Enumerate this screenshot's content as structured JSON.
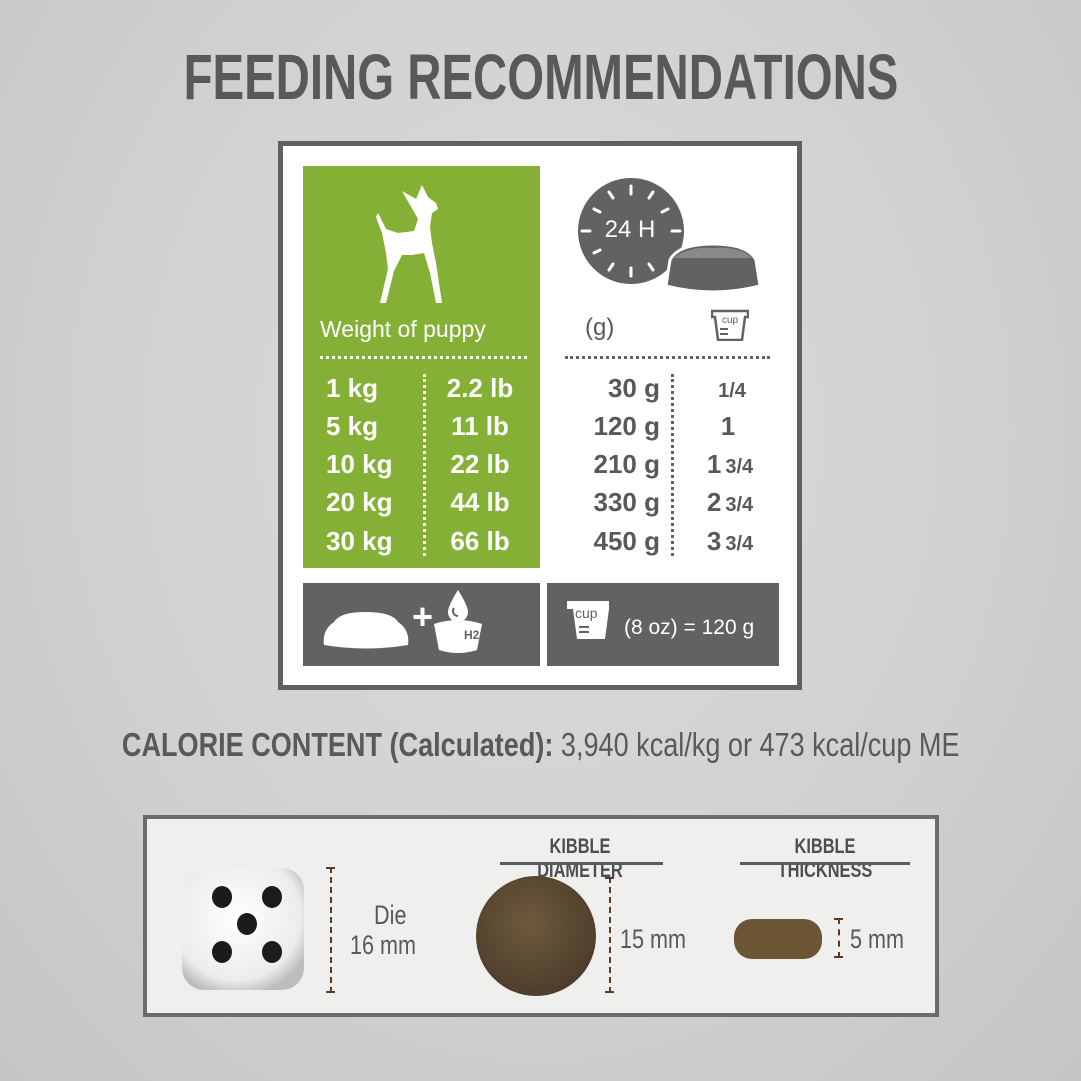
{
  "title": "FEEDING RECOMMENDATIONS",
  "colors": {
    "green": "#84b135",
    "dark_gray": "#616264",
    "text_gray": "#58595b"
  },
  "table": {
    "weight_header": "Weight of puppy",
    "grams_header": "(g)",
    "cup_icon_label": "cup",
    "clock_label": "24 H",
    "icons": [
      "dog-silhouette-icon",
      "clock-24h-icon",
      "food-bowl-icon",
      "measuring-cup-icon"
    ],
    "rows": [
      {
        "kg": "1 kg",
        "lb": "2.2 lb",
        "grams": "30 g",
        "cups_whole": "",
        "cups_frac": "1/4"
      },
      {
        "kg": "5 kg",
        "lb": "11 lb",
        "grams": "120 g",
        "cups_whole": "1",
        "cups_frac": ""
      },
      {
        "kg": "10 kg",
        "lb": "22 lb",
        "grams": "210 g",
        "cups_whole": "1",
        "cups_frac": "3/4"
      },
      {
        "kg": "20 kg",
        "lb": "44 lb",
        "grams": "330 g",
        "cups_whole": "2",
        "cups_frac": "3/4"
      },
      {
        "kg": "30 kg",
        "lb": "66 lb",
        "grams": "450 g",
        "cups_whole": "3",
        "cups_frac": "3/4"
      }
    ]
  },
  "footer_bars": {
    "plus": "+",
    "water_label": "H2O",
    "cup_label": "cup",
    "cup_equivalence": "(8 oz) = 120 g"
  },
  "calorie": {
    "label": "CALORIE CONTENT (Calculated):",
    "value": "3,940 kcal/kg or 473 kcal/cup ME"
  },
  "kibble": {
    "die_label": "Die",
    "die_size": "16 mm",
    "diameter_header": "KIBBLE DIAMETER",
    "diameter_value": "15 mm",
    "thickness_header": "KIBBLE THICKNESS",
    "thickness_value": "5 mm"
  }
}
